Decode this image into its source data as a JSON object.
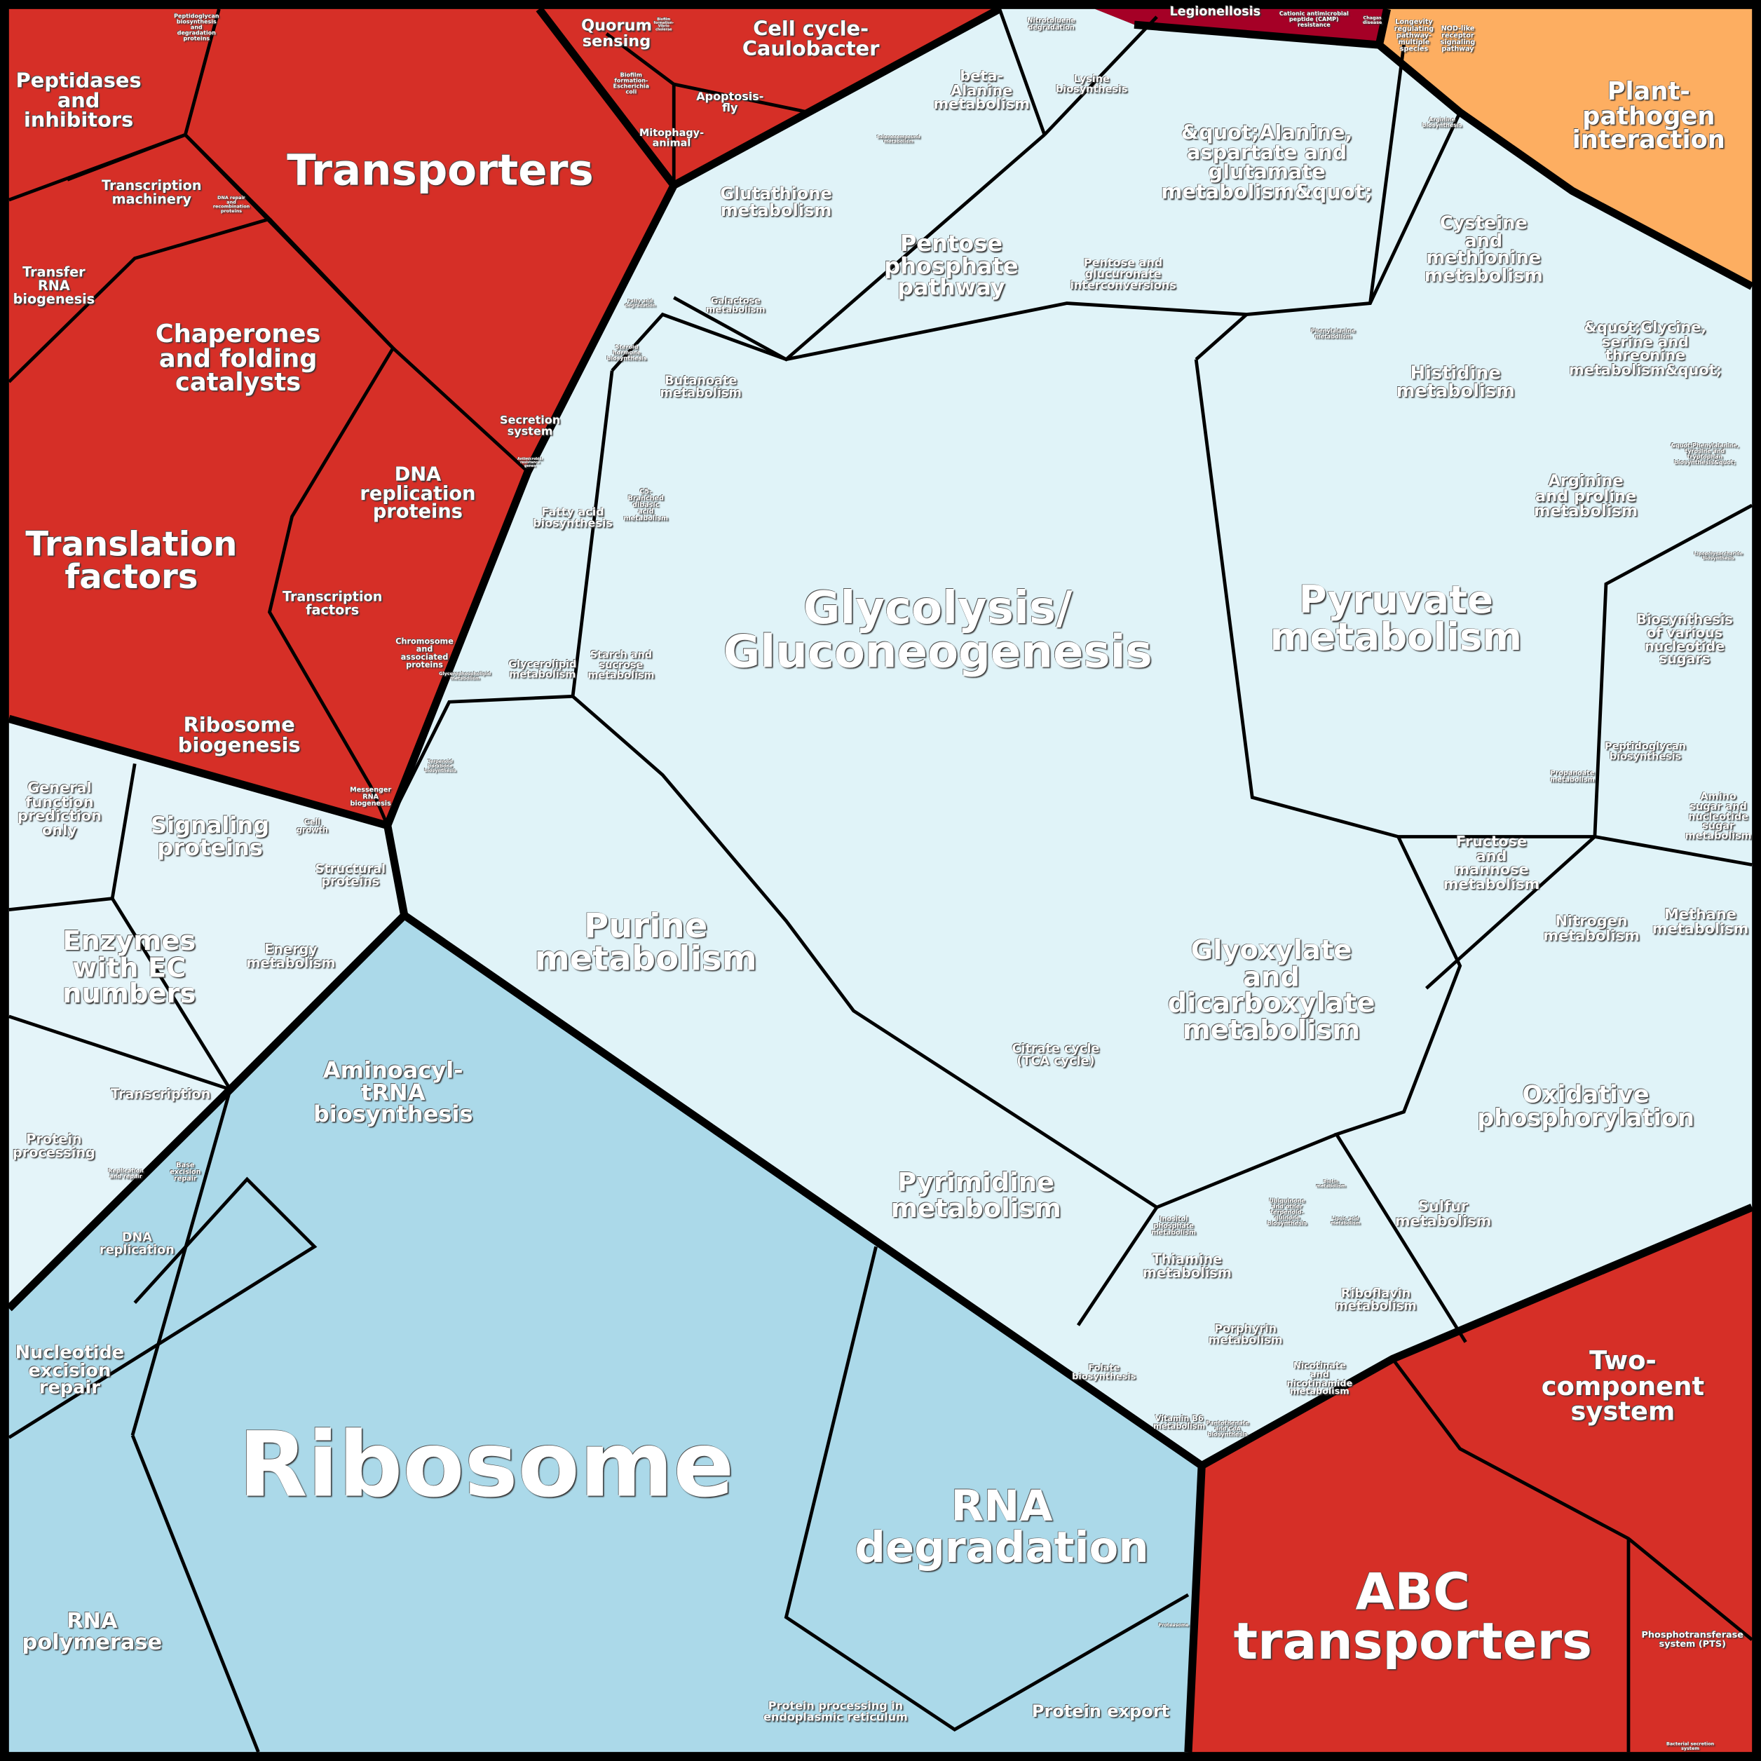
{
  "colors": {
    "genetic_red": "#d62f27",
    "disease_crimson": "#a50026",
    "organismal_orange": "#fdae61",
    "metabolism_light_blue": "#e0f3f8",
    "brite_pale_blue": "#e4f4f9",
    "genetic_info_blue": "#abd9e9",
    "border": "#000000"
  },
  "labels": [
    "Peptidases\nand\ninhibitors",
    "Peptidoglycan\nbiosynthesis\nand\ndegradation\nproteins",
    "Transporters",
    "Transcription\nmachinery",
    "Transfer\nRNA\nbiogenesis",
    "Chaperones\nand folding\ncatalysts",
    "DNA\nreplication\nproteins",
    "Secretion\nsystem",
    "Translation\nfactors",
    "Transcription\nfactors",
    "Chromosome\nand\nassociated\nproteins",
    "Ribosome\nbiogenesis",
    "Messenger\nRNA\nbiogenesis",
    "DNA repair\nand\nrecombination\nproteins",
    "Antimicrobial\nresistance\ngenes",
    "Quorum\nsensing",
    "Biofilm\nformation-\nEscherichia\ncoli",
    "Biofilm\nformation-\nVibrio\ncholerae",
    "Cell cycle-\nCaulobacter",
    "Apoptosis-\nfly",
    "Mitophagy-\nanimal",
    "Legionellosis",
    "Cationic antimicrobial\npeptide (CAMP)\nresistance",
    "Chagas\ndisease",
    "Longevity\nregulating\npathway-\nmultiple\nspecies",
    "NOD-like\nreceptor\nsignaling\npathway",
    "Plant-\npathogen\ninteraction",
    "Nitrotoluene\ndegradation",
    "beta-\nAlanine\nmetabolism",
    "Lysine\nbiosynthesis",
    "&quot;Alanine,\naspartate and\nglutamate\nmetabolism&quot;",
    "Arginine\nbiosynthesis",
    "Selenocompound\nmetabolism",
    "Glutathione\nmetabolism",
    "Pentose\nphosphate\npathway",
    "Pentose and\nglucuronate\ninterconversions",
    "Galactose\nmetabolism",
    "Cysteine\nand\nmethionine\nmetabolism",
    "Phenylalanine\nmetabolism",
    "&quot;Glycine,\nserine and\nthreonine\nmetabolism&quot;",
    "Histidine\nmetabolism",
    "Butanoate\nmetabolism",
    "Steroid\nhormone\nbiosynthesis",
    "Fatty acid\ndegradation",
    "Fatty acid\nbiosynthesis",
    "C5-\nBranched\ndibasic\nacid\nmetabolism",
    "Arginine\nand proline\nmetabolism",
    "&quot;Phenylalanine,\ntyrosine and\ntryptophan\nbiosynthesis&quot;",
    "Glycolysis/\nGluconeogenesis",
    "Pyruvate\nmetabolism",
    "Lipopolysaccharide\nbiosynthesis",
    "Biosynthesis\nof various\nnucleotide\nsugars",
    "Glycerolipid\nmetabolism",
    "Starch and\nsucrose\nmetabolism",
    "Glycerophospholipid\nmetabolism",
    "Peptidoglycan\nbiosynthesis",
    "Propanoate\nmetabolism",
    "Amino\nsugar and\nnucleotide\nsugar\nmetabolism",
    "Terpenoid\nbackbone\nbiosynthesis",
    "Fructose\nand\nmannose\nmetabolism",
    "Nitrogen\nmetabolism",
    "Methane\nmetabolism",
    "Purine\nmetabolism",
    "Glyoxylate\nand\ndicarboxylate\nmetabolism",
    "Citrate cycle\n(TCA cycle)",
    "Oxidative\nphosphorylation",
    "Pyrimidine\nmetabolism",
    "Sulfur\nmetabolism",
    "Inositol\nphosphate\nmetabolism",
    "Biotin\nmetabolism",
    "Ubiquinone\nand other\nterpenoid-\nquinone\nbiosynthesis",
    "Lipoic acid\nmetabolism",
    "Thiamine\nmetabolism",
    "Riboflavin\nmetabolism",
    "Porphyrin\nmetabolism",
    "Folate\nbiosynthesis",
    "Nicotinate\nand\nnicotinamide\nmetabolism",
    "Vitamin B6\nmetabolism",
    "Pantothenate\nand CoA\nbiosynthesis",
    "General\nfunction\nprediction\nonly",
    "Signaling\nproteins",
    "Cell\ngrowth",
    "Structural\nproteins",
    "Enzymes\nwith EC\nnumbers",
    "Energy\nmetabolism",
    "Transcription",
    "Protein\nprocessing",
    "Replication\nand repair",
    "Base\nexcision\nrepair",
    "Aminoacyl-\ntRNA\nbiosynthesis",
    "DNA\nreplication",
    "Nucleotide\nexcision\nrepair",
    "Ribosome",
    "RNA\npolymerase",
    "RNA\ndegradation",
    "Protein processing in\nendoplasmic reticulum",
    "Protein export",
    "Proteasome",
    "Two-\ncomponent\nsystem",
    "ABC\ntransporters",
    "Phosphotransferase\nsystem (PTS)",
    "Bacterial secretion\nsystem"
  ]
}
